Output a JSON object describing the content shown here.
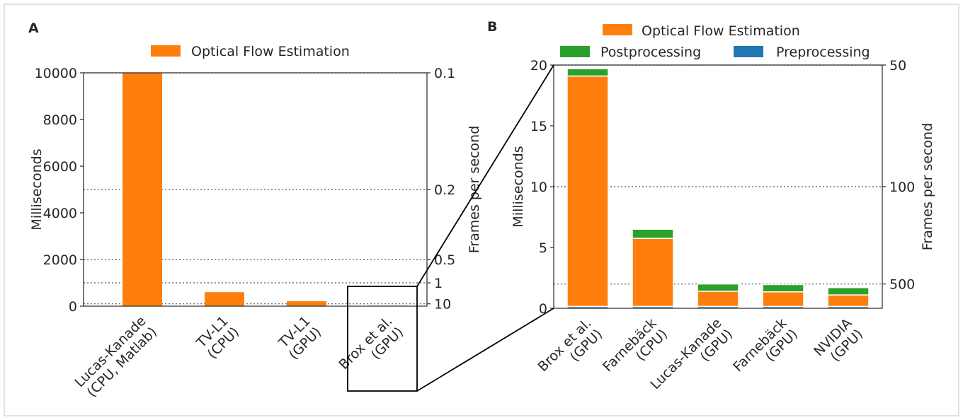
{
  "chart_data": [
    {
      "panel": "A",
      "type": "bar",
      "categories": [
        [
          "Lucas-Kanade",
          "(CPU, Matlab)"
        ],
        [
          "TV-L1",
          "(CPU)"
        ],
        [
          "TV-L1",
          "(GPU)"
        ],
        [
          "Brox et al.",
          "(GPU)"
        ]
      ],
      "series": [
        {
          "name": "Optical Flow Estimation",
          "values": [
            10000,
            600,
            210,
            20
          ],
          "color": "#ff7f0e"
        }
      ],
      "ylabel": "Milliseconds",
      "ylim": [
        0,
        10000
      ],
      "yticks": [
        "0",
        "2000",
        "4000",
        "6000",
        "8000",
        "10000"
      ],
      "y2label": "Frames per second",
      "y2ticks": [
        {
          "label": "0.1",
          "ms": 10000
        },
        {
          "label": "0.2",
          "ms": 5000
        },
        {
          "label": "0.5",
          "ms": 2000
        },
        {
          "label": "1",
          "ms": 1000
        },
        {
          "label": "10",
          "ms": 100
        }
      ],
      "grid": "dotted horizontal lines at the frames-per-second ticks",
      "legend": "top-center",
      "zoom_box_category": "Brox et al. (GPU)"
    },
    {
      "panel": "B",
      "type": "bar",
      "stacked": true,
      "categories": [
        [
          "Brox et al.",
          "(GPU)"
        ],
        [
          "Farnebäck",
          "(CPU)"
        ],
        [
          "Lucas-Kanade",
          "(GPU)"
        ],
        [
          "Farnebäck",
          "(GPU)"
        ],
        [
          "NVIDIA",
          "(GPU)"
        ]
      ],
      "series": [
        {
          "name": "Preprocessing",
          "values": [
            0.15,
            0.15,
            0.15,
            0.15,
            0.15
          ],
          "color": "#1f77b4"
        },
        {
          "name": "Optical Flow Estimation",
          "values": [
            18.95,
            5.6,
            1.25,
            1.2,
            0.95
          ],
          "color": "#ff7f0e"
        },
        {
          "name": "Postprocessing",
          "values": [
            0.6,
            0.75,
            0.6,
            0.6,
            0.6
          ],
          "color": "#2ca02c"
        }
      ],
      "legend_order": [
        "Optical Flow Estimation",
        "Postprocessing",
        "Preprocessing"
      ],
      "ylabel": "Milliseconds",
      "ylim": [
        0,
        20
      ],
      "yticks": [
        "0",
        "5",
        "10",
        "15",
        "20"
      ],
      "y2label": "Frames per second",
      "y2ticks": [
        {
          "label": "50",
          "ms": 20
        },
        {
          "label": "100",
          "ms": 10
        },
        {
          "label": "500",
          "ms": 2
        }
      ],
      "grid": "dotted horizontal lines at the frames-per-second ticks",
      "legend": "top"
    }
  ],
  "panel_labels": [
    "A",
    "B"
  ]
}
